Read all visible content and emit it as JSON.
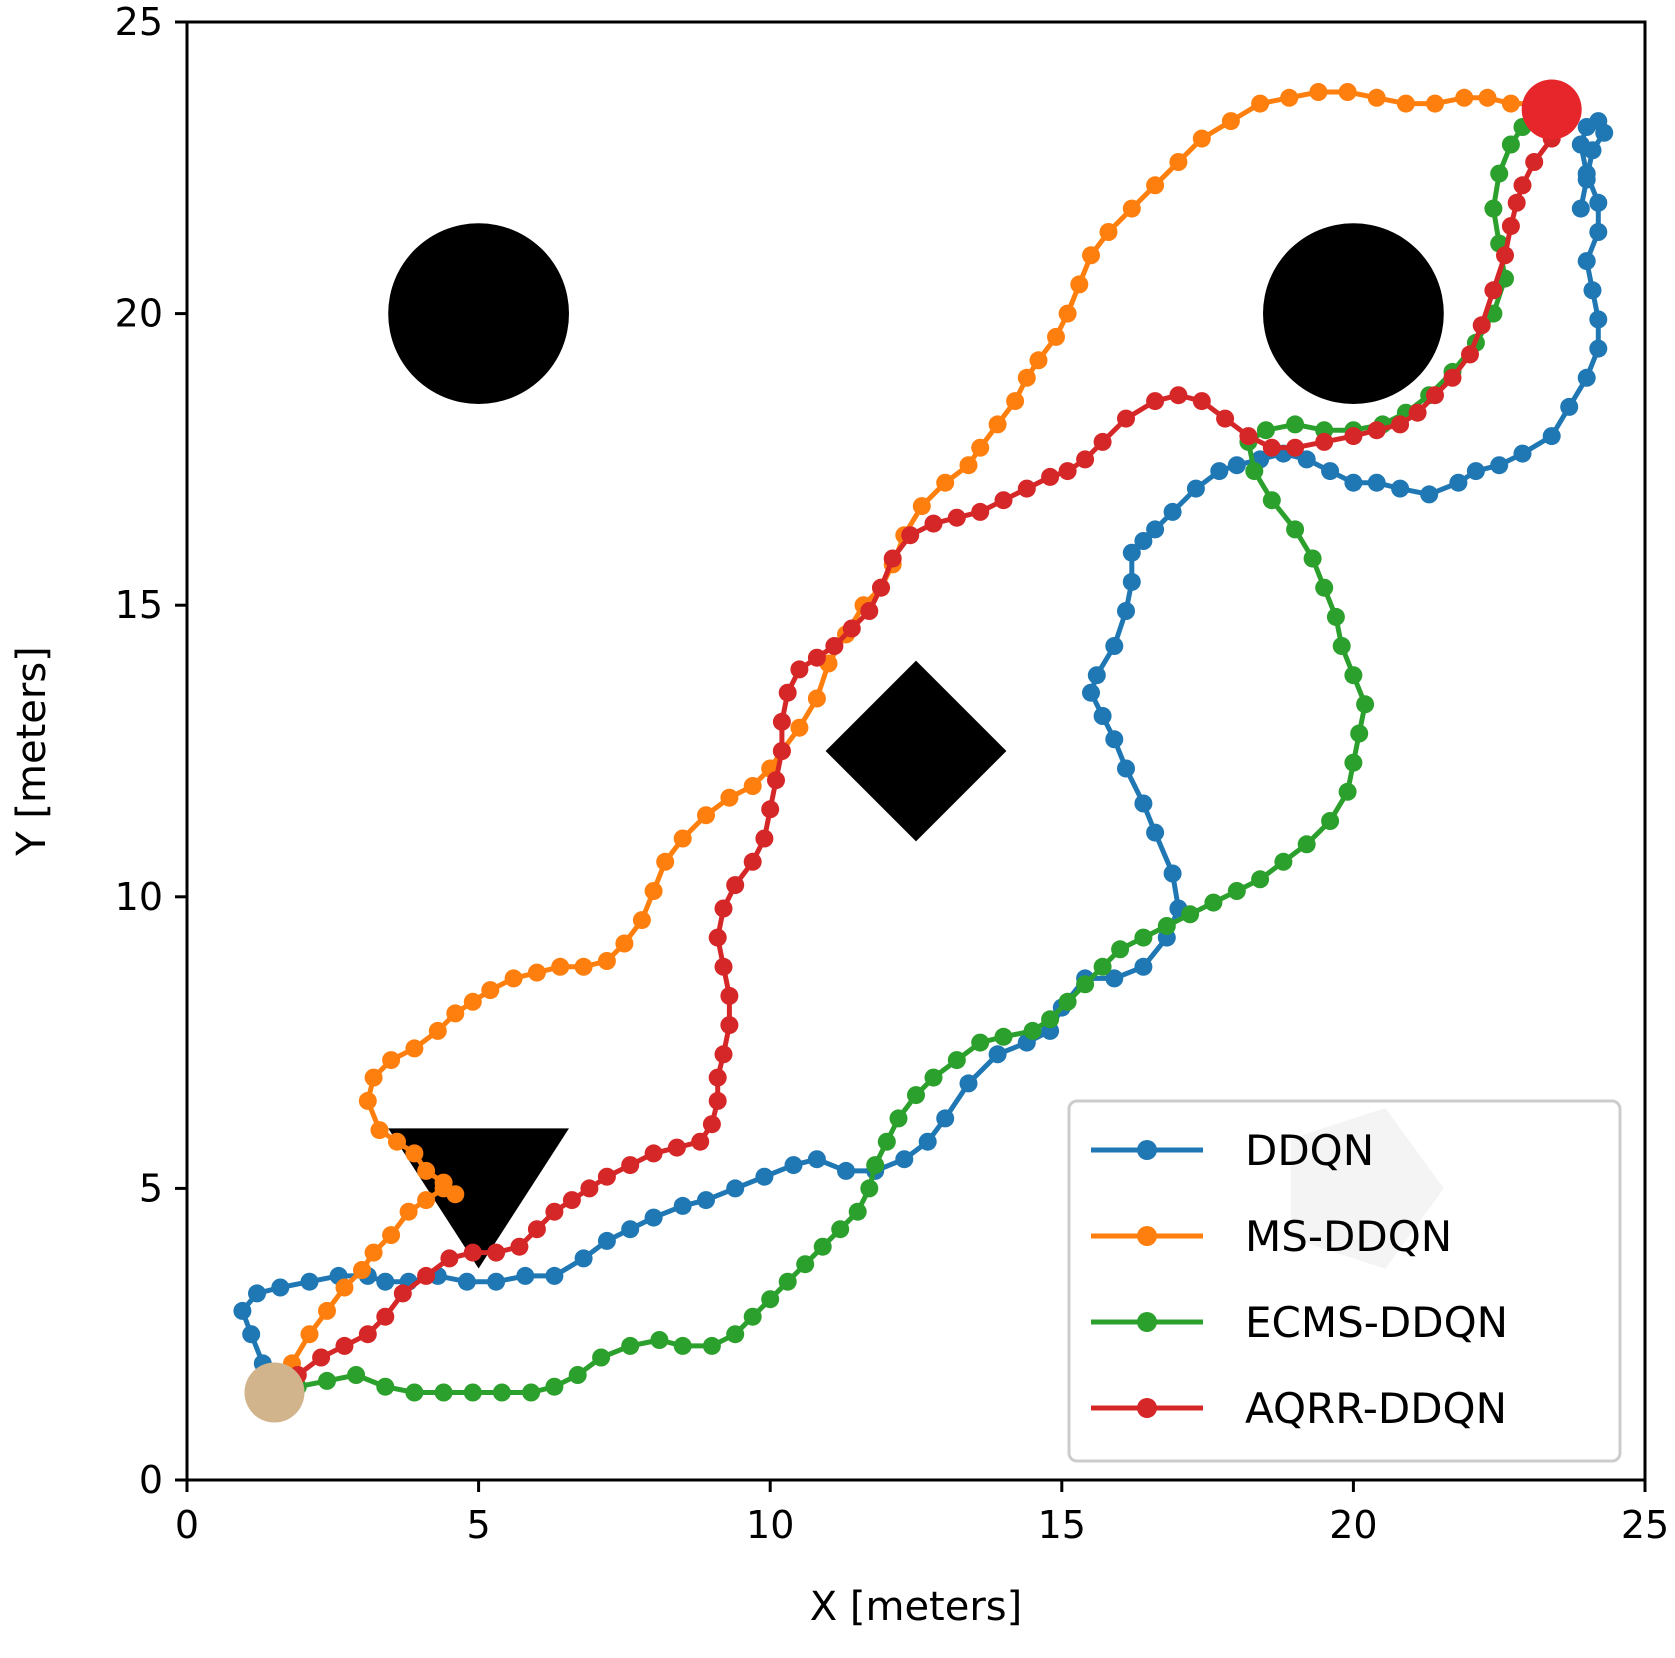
{
  "chart_data": {
    "type": "line",
    "title": "",
    "xlabel": "X [meters]",
    "ylabel": "Y [meters]",
    "xlim": [
      0,
      25
    ],
    "ylim": [
      0,
      25
    ],
    "xticks": [
      0,
      5,
      10,
      15,
      20,
      25
    ],
    "yticks": [
      0,
      5,
      10,
      15,
      20,
      25
    ],
    "grid": false,
    "legend_position": "bottom-right",
    "colors": {
      "DDQN": "#1f77b4",
      "MS-DDQN": "#ff7f0e",
      "ECMS-DDQN": "#2ca02c",
      "AQRR-DDQN": "#d62728",
      "obstacle": "#000000",
      "start": "#d2b48c",
      "goal": "#e6262b",
      "shaded_region": "#c8c8c8"
    },
    "start": {
      "x": 1.5,
      "y": 1.5
    },
    "goal": {
      "x": 23.4,
      "y": 23.5
    },
    "obstacles": [
      {
        "shape": "circle",
        "x": 5,
        "y": 20,
        "radius": 1.55
      },
      {
        "shape": "circle",
        "x": 20,
        "y": 20,
        "radius": 1.55
      },
      {
        "shape": "diamond",
        "x": 12.5,
        "y": 12.5,
        "half_size": 1.55
      },
      {
        "shape": "triangle-down",
        "x": 5,
        "y": 5.1,
        "half_size": 1.55
      }
    ],
    "shaded_region": {
      "shape": "pentagon",
      "x": 20.1,
      "y": 5.0,
      "half_size": 1.45
    },
    "series": [
      {
        "name": "DDQN",
        "x": [
          1.5,
          1.3,
          1.1,
          0.95,
          1.2,
          1.6,
          2.1,
          2.6,
          3.1,
          3.4,
          3.8,
          4.3,
          4.8,
          5.3,
          5.8,
          6.3,
          6.8,
          7.2,
          7.6,
          8.0,
          8.5,
          8.9,
          9.4,
          9.9,
          10.4,
          10.8,
          11.3,
          11.8,
          12.3,
          12.7,
          13.0,
          13.4,
          13.9,
          14.4,
          14.8,
          15.0,
          15.4,
          15.9,
          16.4,
          16.8,
          17.0,
          16.9,
          16.6,
          16.4,
          16.1,
          15.9,
          15.7,
          15.5,
          15.6,
          15.9,
          16.1,
          16.2,
          16.2,
          16.4,
          16.6,
          16.9,
          17.3,
          17.7,
          18.0,
          18.4,
          18.8,
          19.2,
          19.6,
          20.0,
          20.4,
          20.8,
          21.3,
          21.8,
          22.1,
          22.5,
          22.9,
          23.4,
          23.7,
          24.0,
          24.2,
          24.2,
          24.1,
          24.0,
          24.2,
          24.2,
          24.0,
          23.9,
          24.0,
          24.2,
          24.3,
          24.1,
          24.0,
          23.9
        ],
        "y": [
          1.5,
          2.0,
          2.5,
          2.9,
          3.2,
          3.3,
          3.4,
          3.5,
          3.5,
          3.4,
          3.4,
          3.5,
          3.4,
          3.4,
          3.5,
          3.5,
          3.8,
          4.1,
          4.3,
          4.5,
          4.7,
          4.8,
          5.0,
          5.2,
          5.4,
          5.5,
          5.3,
          5.3,
          5.5,
          5.8,
          6.2,
          6.8,
          7.3,
          7.5,
          7.7,
          8.1,
          8.6,
          8.6,
          8.8,
          9.3,
          9.8,
          10.4,
          11.1,
          11.6,
          12.2,
          12.7,
          13.1,
          13.5,
          13.8,
          14.3,
          14.9,
          15.4,
          15.9,
          16.1,
          16.3,
          16.6,
          17.0,
          17.3,
          17.4,
          17.5,
          17.6,
          17.5,
          17.3,
          17.1,
          17.1,
          17.0,
          16.9,
          17.1,
          17.3,
          17.4,
          17.6,
          17.9,
          18.4,
          18.9,
          19.4,
          19.9,
          20.4,
          20.9,
          21.4,
          21.9,
          22.4,
          22.9,
          23.2,
          23.3,
          23.1,
          22.8,
          22.3,
          21.8
        ]
      },
      {
        "name": "MS-DDQN",
        "x": [
          1.5,
          1.8,
          2.1,
          2.4,
          2.7,
          3.0,
          3.2,
          3.5,
          3.8,
          4.1,
          4.4,
          4.6,
          4.4,
          4.1,
          3.9,
          3.6,
          3.3,
          3.1,
          3.2,
          3.5,
          3.9,
          4.3,
          4.6,
          4.9,
          5.2,
          5.6,
          6.0,
          6.4,
          6.8,
          7.2,
          7.5,
          7.8,
          8.0,
          8.2,
          8.5,
          8.9,
          9.3,
          9.7,
          10.0,
          10.2,
          10.5,
          10.8,
          11.0,
          11.3,
          11.6,
          11.9,
          12.1,
          12.3,
          12.6,
          13.0,
          13.4,
          13.6,
          13.9,
          14.2,
          14.4,
          14.6,
          14.9,
          15.1,
          15.3,
          15.5,
          15.8,
          16.2,
          16.6,
          17.0,
          17.4,
          17.9,
          18.4,
          18.9,
          19.4,
          19.9,
          20.4,
          20.9,
          21.4,
          21.9,
          22.3,
          22.7,
          23.1
        ],
        "y": [
          1.5,
          2.0,
          2.5,
          2.9,
          3.3,
          3.6,
          3.9,
          4.2,
          4.6,
          4.8,
          5.0,
          4.9,
          5.1,
          5.3,
          5.6,
          5.8,
          6.0,
          6.5,
          6.9,
          7.2,
          7.4,
          7.7,
          8.0,
          8.2,
          8.4,
          8.6,
          8.7,
          8.8,
          8.8,
          8.9,
          9.2,
          9.6,
          10.1,
          10.6,
          11.0,
          11.4,
          11.7,
          11.9,
          12.2,
          12.5,
          12.9,
          13.4,
          14.0,
          14.5,
          15.0,
          15.3,
          15.7,
          16.2,
          16.7,
          17.1,
          17.4,
          17.7,
          18.1,
          18.5,
          18.9,
          19.2,
          19.6,
          20.0,
          20.5,
          21.0,
          21.4,
          21.8,
          22.2,
          22.6,
          23.0,
          23.3,
          23.6,
          23.7,
          23.8,
          23.8,
          23.7,
          23.6,
          23.6,
          23.7,
          23.7,
          23.6,
          23.6
        ]
      },
      {
        "name": "ECMS-DDQN",
        "x": [
          1.5,
          1.9,
          2.4,
          2.9,
          3.4,
          3.9,
          4.4,
          4.9,
          5.4,
          5.9,
          6.3,
          6.7,
          7.1,
          7.6,
          8.1,
          8.5,
          9.0,
          9.4,
          9.7,
          10.0,
          10.3,
          10.6,
          10.9,
          11.2,
          11.5,
          11.7,
          11.8,
          12.0,
          12.2,
          12.5,
          12.8,
          13.2,
          13.6,
          14.0,
          14.5,
          14.8,
          15.1,
          15.4,
          15.7,
          16.0,
          16.4,
          16.8,
          17.2,
          17.6,
          18.0,
          18.4,
          18.8,
          19.2,
          19.6,
          19.9,
          20.0,
          20.1,
          20.2,
          20.0,
          19.8,
          19.7,
          19.5,
          19.3,
          19.0,
          18.6,
          18.3,
          18.2,
          18.5,
          19.0,
          19.5,
          20.0,
          20.5,
          20.9,
          21.3,
          21.7,
          22.1,
          22.4,
          22.6,
          22.5,
          22.4,
          22.5,
          22.7,
          22.9,
          23.1,
          23.4
        ],
        "y": [
          1.5,
          1.6,
          1.7,
          1.8,
          1.6,
          1.5,
          1.5,
          1.5,
          1.5,
          1.5,
          1.6,
          1.8,
          2.1,
          2.3,
          2.4,
          2.3,
          2.3,
          2.5,
          2.8,
          3.1,
          3.4,
          3.7,
          4.0,
          4.3,
          4.6,
          5.0,
          5.4,
          5.8,
          6.2,
          6.6,
          6.9,
          7.2,
          7.5,
          7.6,
          7.7,
          7.9,
          8.2,
          8.5,
          8.8,
          9.1,
          9.3,
          9.5,
          9.7,
          9.9,
          10.1,
          10.3,
          10.6,
          10.9,
          11.3,
          11.8,
          12.3,
          12.8,
          13.3,
          13.8,
          14.3,
          14.8,
          15.3,
          15.8,
          16.3,
          16.8,
          17.3,
          17.8,
          18.0,
          18.1,
          18.0,
          18.0,
          18.1,
          18.3,
          18.6,
          19.0,
          19.5,
          20.0,
          20.6,
          21.2,
          21.8,
          22.4,
          22.9,
          23.2,
          23.3,
          23.5
        ]
      },
      {
        "name": "AQRR-DDQN",
        "x": [
          1.5,
          1.9,
          2.3,
          2.7,
          3.1,
          3.4,
          3.7,
          4.1,
          4.5,
          4.9,
          5.3,
          5.7,
          6.0,
          6.3,
          6.6,
          6.9,
          7.2,
          7.6,
          8.0,
          8.4,
          8.8,
          9.0,
          9.1,
          9.1,
          9.2,
          9.3,
          9.3,
          9.2,
          9.1,
          9.2,
          9.4,
          9.7,
          9.9,
          10.0,
          10.1,
          10.2,
          10.2,
          10.3,
          10.5,
          10.8,
          11.1,
          11.4,
          11.7,
          11.9,
          12.1,
          12.4,
          12.8,
          13.2,
          13.6,
          14.0,
          14.4,
          14.8,
          15.1,
          15.4,
          15.7,
          16.1,
          16.6,
          17.0,
          17.4,
          17.8,
          18.2,
          18.6,
          19.0,
          19.5,
          20.0,
          20.4,
          20.8,
          21.1,
          21.4,
          21.7,
          22.0,
          22.2,
          22.4,
          22.6,
          22.7,
          22.8,
          22.9,
          23.1,
          23.4
        ],
        "y": [
          1.5,
          1.8,
          2.1,
          2.3,
          2.5,
          2.8,
          3.2,
          3.5,
          3.8,
          3.9,
          3.9,
          4.0,
          4.3,
          4.6,
          4.8,
          5.0,
          5.2,
          5.4,
          5.6,
          5.7,
          5.8,
          6.1,
          6.5,
          6.9,
          7.3,
          7.8,
          8.3,
          8.8,
          9.3,
          9.8,
          10.2,
          10.6,
          11.0,
          11.5,
          12.0,
          12.5,
          13.0,
          13.5,
          13.9,
          14.1,
          14.3,
          14.6,
          14.9,
          15.3,
          15.8,
          16.2,
          16.4,
          16.5,
          16.6,
          16.8,
          17.0,
          17.2,
          17.3,
          17.5,
          17.8,
          18.2,
          18.5,
          18.6,
          18.5,
          18.2,
          17.9,
          17.7,
          17.7,
          17.8,
          17.9,
          18.0,
          18.1,
          18.3,
          18.6,
          18.9,
          19.3,
          19.8,
          20.4,
          21.0,
          21.5,
          21.9,
          22.2,
          22.6,
          23.0
        ]
      }
    ]
  }
}
